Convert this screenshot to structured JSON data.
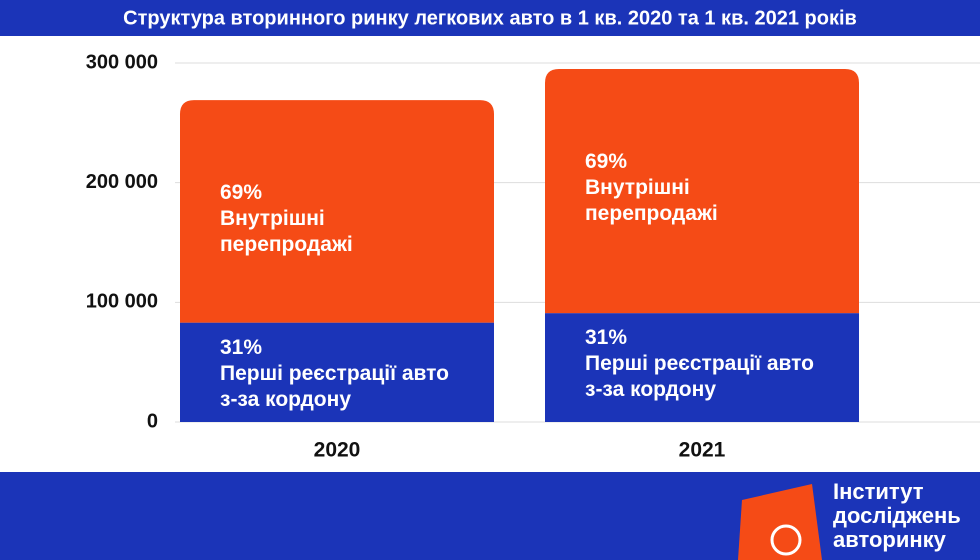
{
  "chart_data": {
    "type": "stacked-bar",
    "title": "Структура вторинного ринку легкових авто в 1 кв. 2020 та 1 кв. 2021 років",
    "categories": [
      "2020",
      "2021"
    ],
    "series": [
      {
        "name": "Перші реєстрації авто з-за кордону",
        "color": "#1b34b8",
        "values": [
          83000,
          91000
        ],
        "value_labels": [
          "31%",
          "31%"
        ]
      },
      {
        "name": "Внутрішні перепродажі",
        "color": "#f54b16",
        "values": [
          186000,
          204000
        ],
        "value_labels": [
          "69%",
          "69%"
        ]
      }
    ],
    "ylim": [
      0,
      300000
    ],
    "yticks": [
      0,
      {
        "value": 100000,
        "label": "100 000"
      },
      {
        "value": 200000,
        "label": "200 000"
      },
      {
        "value": 300000,
        "label": "300 000"
      }
    ],
    "grid": true
  },
  "footer": {
    "logo_text": "Інститут досліджень авторинку"
  }
}
